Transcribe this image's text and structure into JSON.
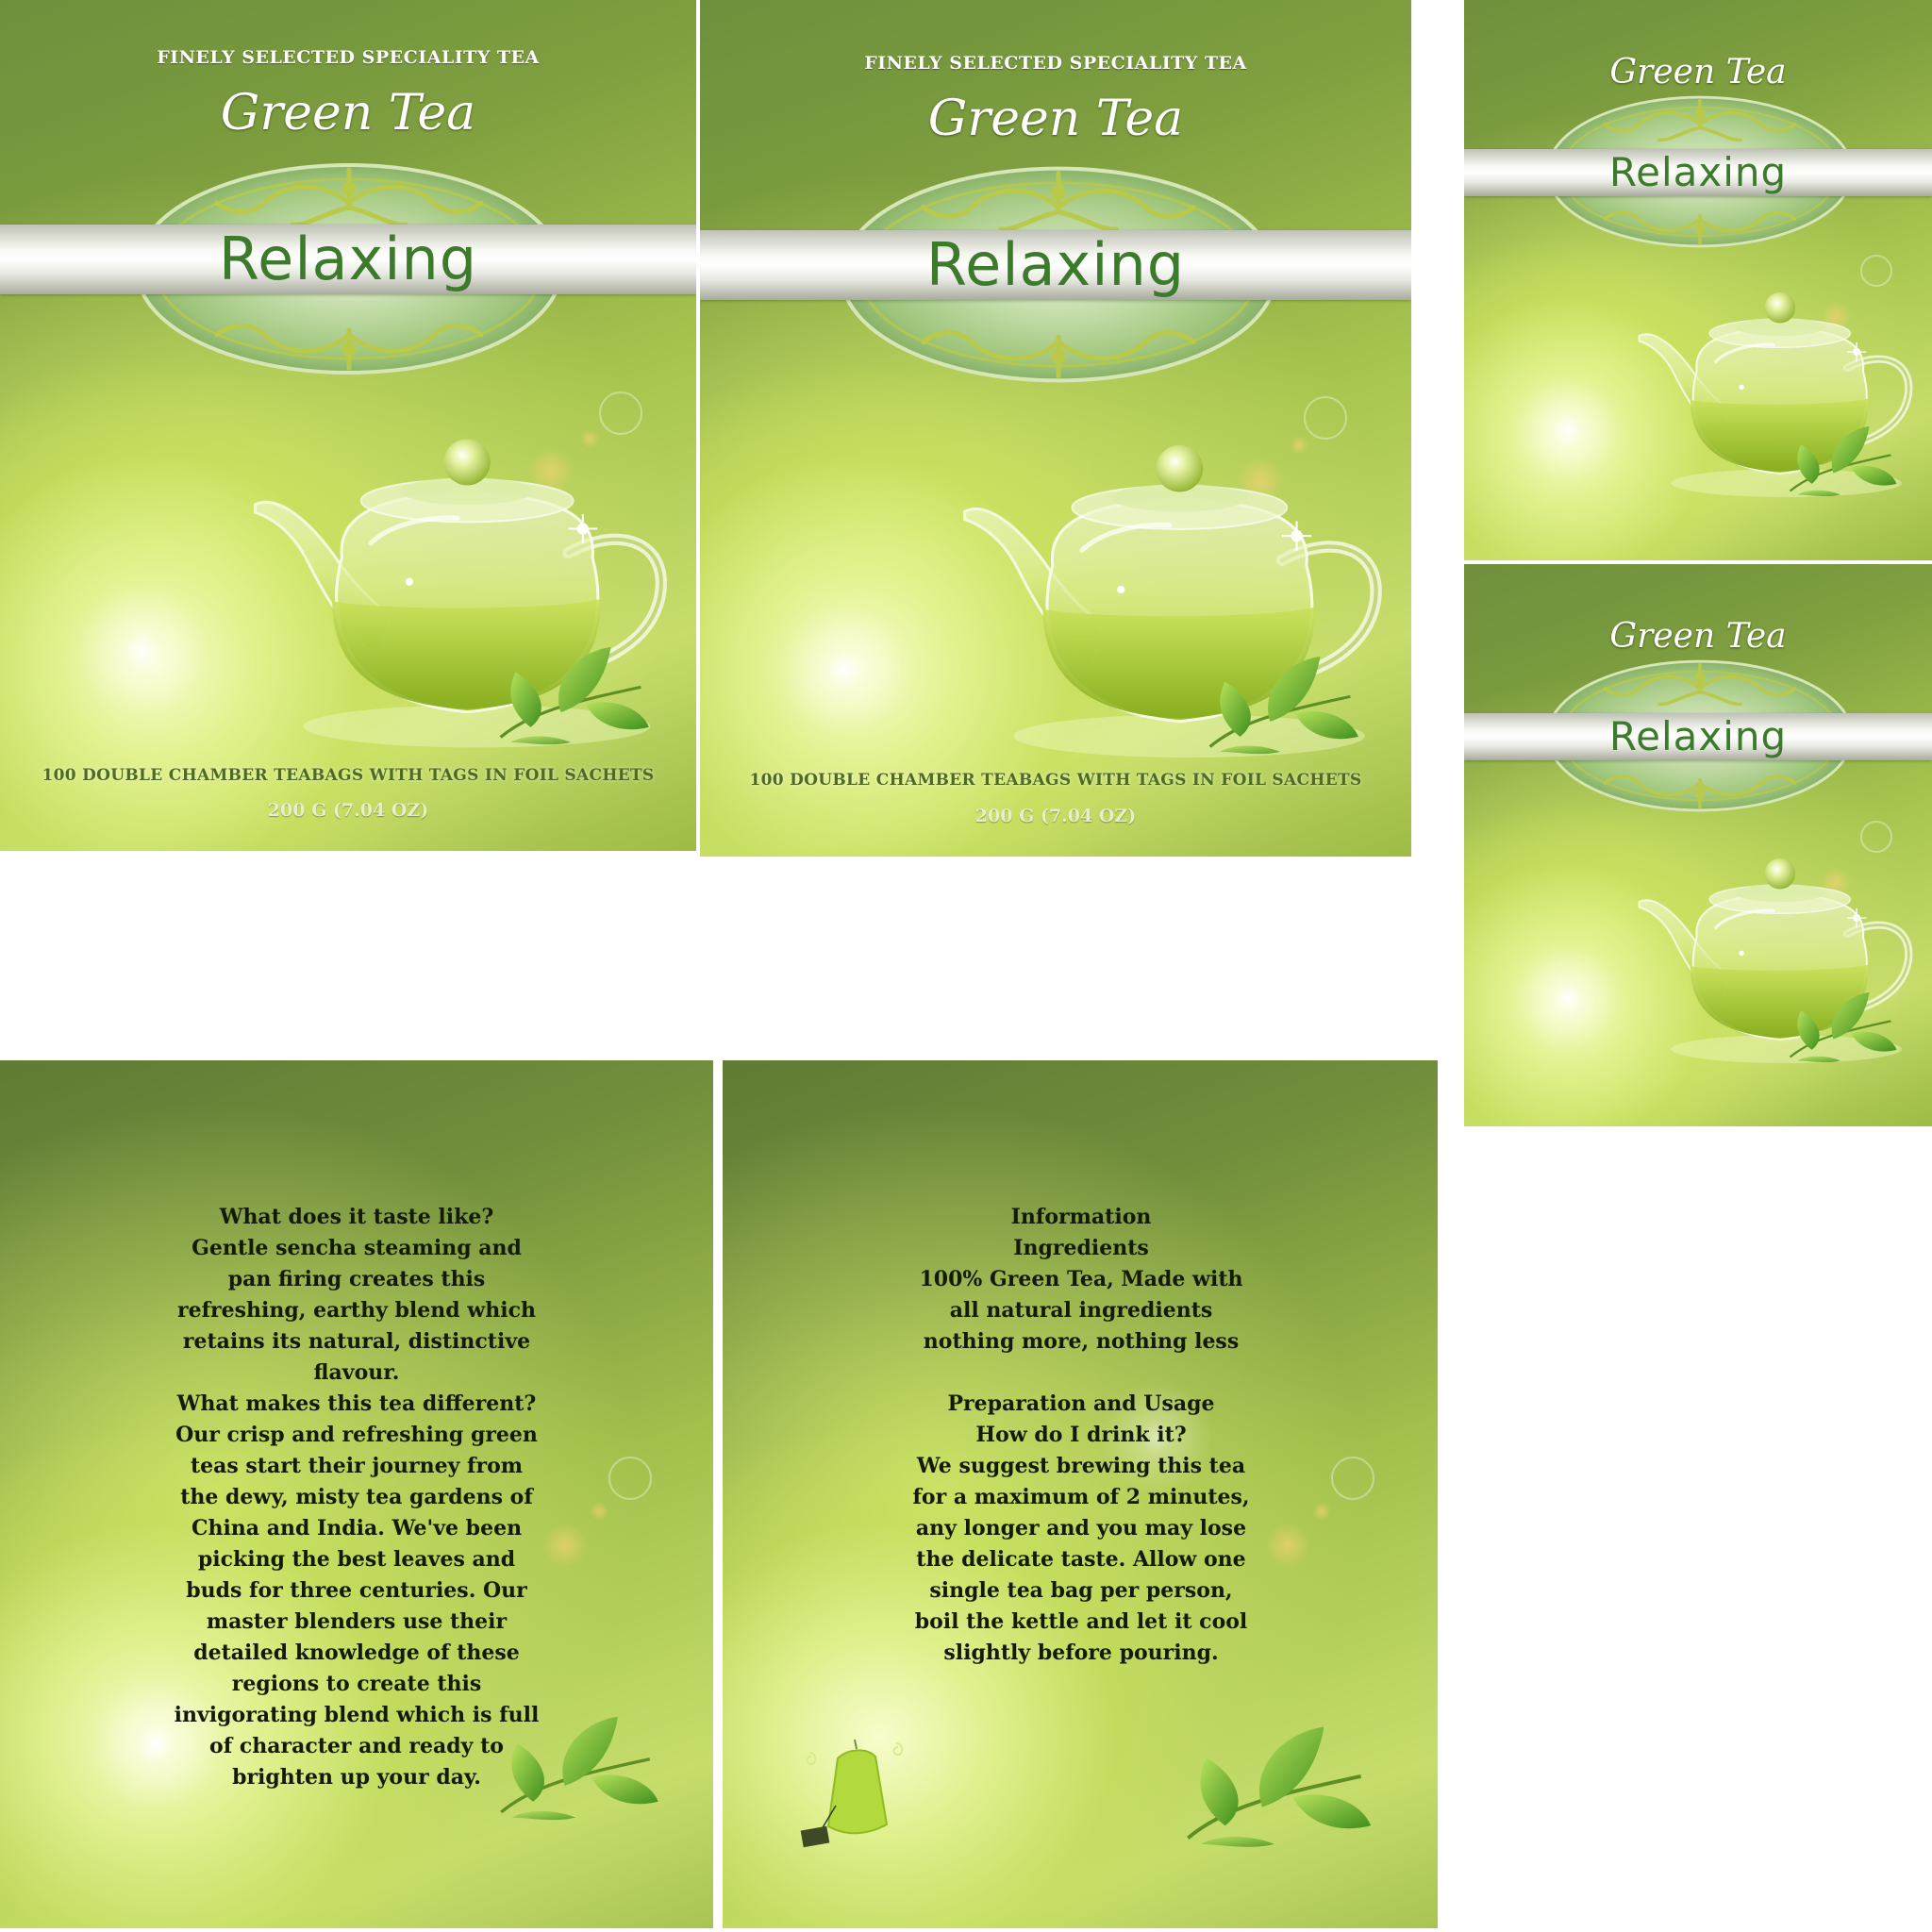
{
  "front": {
    "tagline": "FINELY SELECTED SPECIALITY TEA",
    "script_title": "Green Tea",
    "band_title": "Relaxing",
    "bottom_line": "100 DOUBLE CHAMBER TEABAGS WITH TAGS IN FOIL SACHETS",
    "weight": "200 G (7.04 OZ)"
  },
  "side": {
    "script_title": "Green Tea",
    "band_title": "Relaxing"
  },
  "back_left": {
    "copy": "What does it taste like?\nGentle sencha steaming and\npan firing creates this\nrefreshing, earthy blend which\nretains its natural, distinctive\nflavour.\nWhat makes this tea different?\nOur crisp and refreshing green\nteas start their journey from\nthe dewy, misty tea gardens of\nChina and India. We've been\npicking the best leaves and\nbuds for three centuries. Our\nmaster blenders use their\ndetailed knowledge of these\nregions to create this\ninvigorating blend which is full\nof character and ready to\nbrighten up your day."
  },
  "back_right": {
    "copy": "Information\nIngredients\n100% Green Tea, Made with\nall natural ingredients\nnothing more, nothing less\n\nPreparation and Usage\nHow do I drink it?\nWe suggest brewing this tea\nfor a maximum of 2 minutes,\nany longer and you may lose\nthe delicate taste. Allow one\nsingle tea bag per person,\nboil the kettle and let it cool\nslightly before pouring."
  },
  "colors": {
    "panel_dark": "#6f8f3d",
    "panel_light": "#c6dd6c",
    "band_text": "#3c7a2c",
    "ornament": "#b9c94a"
  },
  "icons": [
    "teapot-icon",
    "tea-leaves-icon",
    "tea-bag-icon",
    "ornament-emblem-icon"
  ]
}
